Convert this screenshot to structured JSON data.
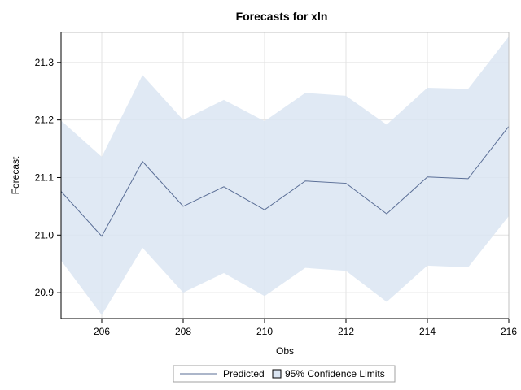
{
  "chart_data": {
    "type": "line",
    "title": "Forecasts for xln",
    "xlabel": "Obs",
    "ylabel": "Forecast",
    "x": [
      205,
      206,
      207,
      208,
      209,
      210,
      211,
      212,
      213,
      214,
      215,
      216
    ],
    "xticks": [
      206,
      208,
      210,
      212,
      214,
      216
    ],
    "xlim": [
      205,
      216
    ],
    "yticks": [
      20.9,
      21.0,
      21.1,
      21.2,
      21.3
    ],
    "ylim": [
      20.855,
      21.352
    ],
    "grid": true,
    "legend_position": "bottom",
    "series": [
      {
        "name": "Predicted",
        "kind": "line",
        "color": "#5a6e96",
        "values": [
          21.076,
          20.998,
          21.128,
          21.05,
          21.084,
          21.044,
          21.094,
          21.09,
          21.037,
          21.101,
          21.098,
          21.189
        ]
      },
      {
        "name": "95% Confidence Limits",
        "kind": "band",
        "color": "#dbe5f2",
        "lower": [
          20.956,
          20.861,
          20.978,
          20.9,
          20.934,
          20.894,
          20.943,
          20.938,
          20.884,
          20.947,
          20.944,
          21.033
        ],
        "upper": [
          21.199,
          21.136,
          21.278,
          21.2,
          21.235,
          21.198,
          21.247,
          21.242,
          21.192,
          21.256,
          21.254,
          21.345
        ]
      }
    ]
  }
}
